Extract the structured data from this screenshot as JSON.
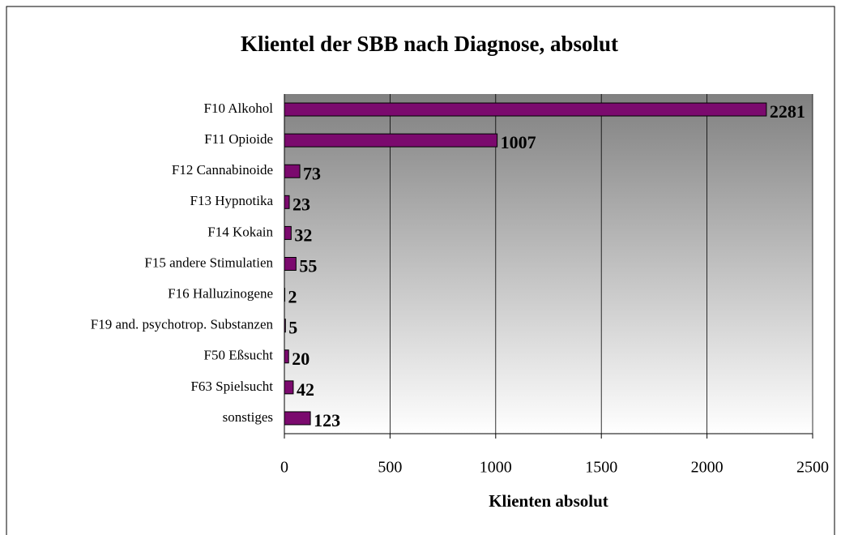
{
  "chart_data": {
    "type": "barh",
    "title": "Klientel der SBB nach Diagnose, absolut",
    "xlabel": "Klienten absolut",
    "categories": [
      "F10 Alkohol",
      "F11 Opioide",
      "F12 Cannabinoide",
      "F13 Hypnotika",
      "F14 Kokain",
      "F15 andere Stimulatien",
      "F16 Halluzinogene",
      "F19 and. psychotrop. Substanzen",
      "F50 Eßsucht",
      "F63 Spielsucht",
      "sonstiges"
    ],
    "values": [
      2281,
      1007,
      73,
      23,
      32,
      55,
      2,
      5,
      20,
      42,
      123
    ],
    "color": "#7b0a6e",
    "xlim": [
      0,
      2500
    ],
    "xticks": [
      0,
      500,
      1000,
      1500,
      2000,
      2500
    ],
    "grid": true
  }
}
